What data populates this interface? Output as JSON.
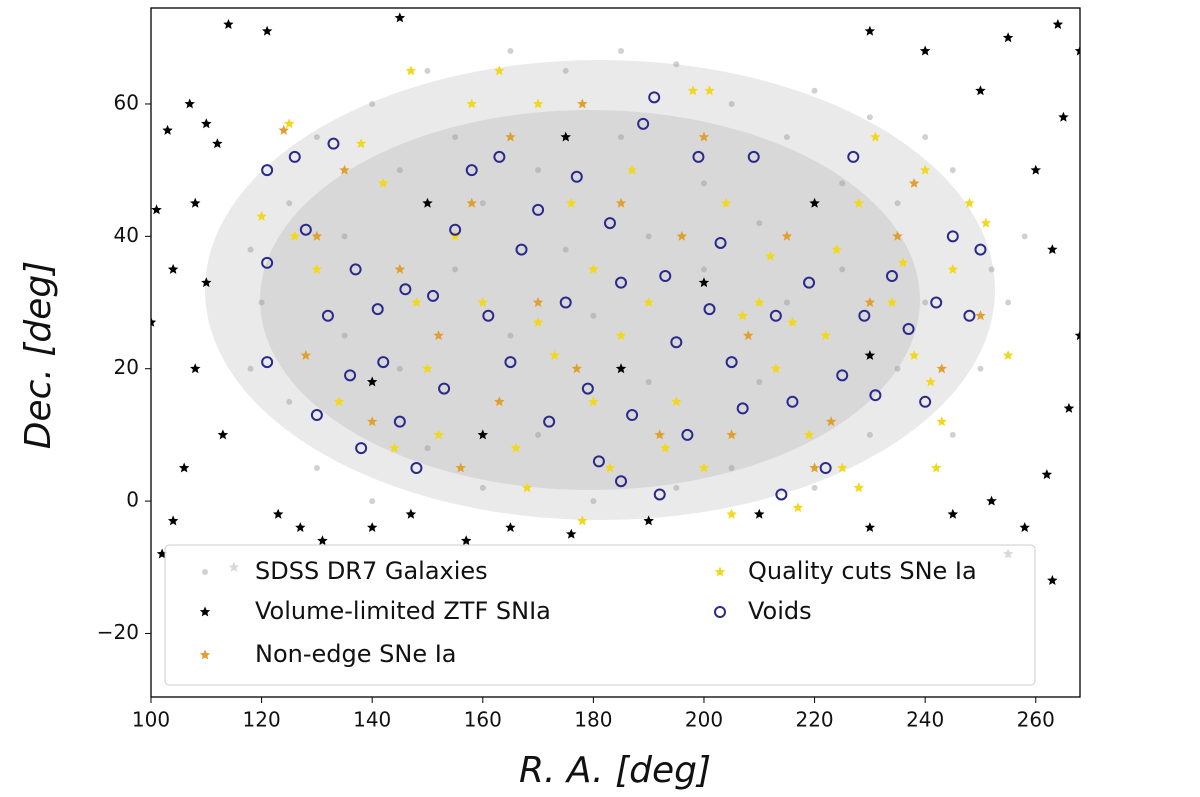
{
  "chart_data": {
    "type": "scatter",
    "xlabel": "R. A. [deg]",
    "ylabel": "Dec. [deg]",
    "xlim": [
      100,
      268
    ],
    "ylim": [
      -29.6,
      74.5
    ],
    "xticks": [
      100,
      120,
      140,
      160,
      180,
      200,
      220,
      240,
      260
    ],
    "yticks": [
      {
        "value": -20,
        "label": "−20"
      },
      0,
      20,
      40,
      60
    ],
    "legend": "lower left",
    "series": [
      {
        "name": "SDSS DR7 Galaxies",
        "color": "#9a9a9a",
        "marker": "dot",
        "x": [
          120,
          125,
          125,
          130,
          130,
          135,
          135,
          140,
          140,
          145,
          145,
          150,
          150,
          155,
          155,
          160,
          160,
          165,
          165,
          170,
          170,
          175,
          175,
          180,
          180,
          185,
          185,
          190,
          190,
          195,
          195,
          200,
          200,
          205,
          205,
          210,
          210,
          215,
          215,
          220,
          220,
          225,
          225,
          230,
          230,
          235,
          235,
          240,
          240,
          245,
          245,
          250,
          252,
          255,
          258,
          118,
          118
        ],
        "values": [
          30,
          45,
          15,
          55,
          5,
          40,
          25,
          60,
          0,
          50,
          20,
          65,
          8,
          35,
          55,
          2,
          45,
          68,
          25,
          50,
          10,
          65,
          38,
          0,
          28,
          68,
          55,
          40,
          18,
          66,
          2,
          35,
          48,
          60,
          5,
          42,
          18,
          55,
          30,
          62,
          2,
          35,
          48,
          58,
          10,
          20,
          45,
          55,
          30,
          10,
          50,
          20,
          35,
          30,
          40,
          20,
          38
        ]
      },
      {
        "name": "Volume-limited ZTF SNIa",
        "color": "#000000",
        "marker": "star",
        "x": [
          114,
          121,
          145,
          103,
          107,
          110,
          112,
          101,
          104,
          100,
          108,
          113,
          106,
          104,
          123,
          127,
          131,
          140,
          147,
          157,
          165,
          176,
          190,
          210,
          230,
          245,
          252,
          258,
          262,
          266,
          268,
          263,
          260,
          265,
          268,
          255,
          264,
          240,
          230,
          250,
          110,
          108,
          102,
          115,
          255,
          263,
          150,
          175,
          200,
          220,
          185,
          160,
          230,
          140
        ],
        "values": [
          72,
          71,
          73,
          56,
          60,
          57,
          54,
          44,
          35,
          27,
          20,
          10,
          5,
          -3,
          -2,
          -4,
          -6,
          -4,
          -2,
          -6,
          -4,
          -5,
          -3,
          -2,
          -4,
          -2,
          0,
          -4,
          4,
          14,
          25,
          38,
          50,
          58,
          68,
          70,
          72,
          68,
          71,
          62,
          33,
          45,
          -8,
          -10,
          -8,
          -12,
          45,
          55,
          33,
          45,
          20,
          10,
          22,
          18
        ]
      },
      {
        "name": "Non-edge SNe Ia",
        "color": "#e0a030",
        "marker": "star",
        "x": [
          124,
          135,
          145,
          152,
          158,
          163,
          170,
          177,
          185,
          192,
          200,
          208,
          215,
          223,
          230,
          238,
          243,
          250,
          128,
          140,
          156,
          178,
          196,
          220,
          235,
          130,
          165,
          205
        ],
        "values": [
          56,
          50,
          35,
          25,
          45,
          15,
          30,
          20,
          45,
          10,
          55,
          25,
          40,
          12,
          30,
          48,
          20,
          28,
          22,
          12,
          5,
          60,
          40,
          5,
          40,
          40,
          55,
          10
        ]
      },
      {
        "name": "Quality cuts SNe Ia",
        "color": "#f2d81c",
        "marker": "star",
        "x": [
          120,
          125,
          130,
          138,
          142,
          148,
          150,
          155,
          158,
          163,
          166,
          170,
          173,
          176,
          180,
          183,
          187,
          190,
          195,
          198,
          201,
          204,
          207,
          210,
          213,
          216,
          219,
          222,
          225,
          228,
          231,
          234,
          238,
          240,
          241,
          243,
          245,
          248,
          251,
          255,
          147,
          152,
          160,
          168,
          185,
          193,
          200,
          212,
          224,
          236,
          170,
          180,
          126,
          134,
          144,
          178,
          205,
          217,
          228,
          242
        ],
        "values": [
          43,
          57,
          35,
          54,
          48,
          30,
          20,
          40,
          60,
          65,
          8,
          27,
          22,
          45,
          35,
          5,
          50,
          30,
          15,
          62,
          62,
          45,
          28,
          30,
          20,
          27,
          10,
          25,
          5,
          45,
          55,
          30,
          22,
          50,
          18,
          12,
          35,
          45,
          42,
          22,
          65,
          10,
          30,
          2,
          25,
          8,
          5,
          37,
          38,
          36,
          60,
          15,
          40,
          15,
          8,
          -3,
          -2,
          -1,
          2,
          5
        ]
      },
      {
        "name": "Voids",
        "color": "#2a2a8c",
        "marker": "circle",
        "x": [
          121,
          121,
          121,
          126,
          128,
          130,
          132,
          133,
          136,
          137,
          138,
          141,
          142,
          145,
          146,
          148,
          151,
          153,
          155,
          158,
          161,
          163,
          165,
          167,
          170,
          172,
          175,
          177,
          179,
          181,
          183,
          185,
          187,
          189,
          191,
          193,
          195,
          197,
          199,
          201,
          203,
          205,
          207,
          209,
          213,
          216,
          219,
          222,
          225,
          227,
          229,
          231,
          234,
          237,
          240,
          242,
          245,
          248,
          250,
          214,
          185,
          192
        ],
        "values": [
          50,
          36,
          21,
          52,
          41,
          13,
          28,
          54,
          19,
          35,
          8,
          29,
          21,
          12,
          32,
          5,
          31,
          17,
          41,
          50,
          28,
          52,
          21,
          38,
          44,
          12,
          30,
          49,
          17,
          6,
          42,
          33,
          13,
          57,
          61,
          34,
          24,
          10,
          52,
          29,
          39,
          21,
          14,
          52,
          28,
          15,
          33,
          5,
          19,
          52,
          28,
          16,
          34,
          26,
          15,
          30,
          40,
          28,
          38,
          1,
          3,
          1
        ]
      }
    ]
  }
}
